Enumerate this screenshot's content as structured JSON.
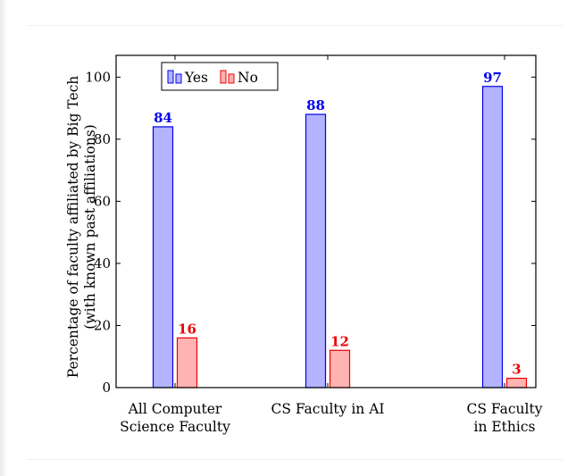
{
  "chart_data": {
    "type": "bar",
    "categories": [
      [
        "All Computer",
        "Science Faculty"
      ],
      [
        "CS Faculty in AI"
      ],
      [
        "CS Faculty",
        "in Ethics"
      ]
    ],
    "series": [
      {
        "name": "Yes",
        "values": [
          84,
          88,
          97
        ],
        "color": "#0000ee",
        "fill": "#b3b3ff"
      },
      {
        "name": "No",
        "values": [
          16,
          12,
          3
        ],
        "color": "#ee0000",
        "fill": "#ffb3b3"
      }
    ],
    "ylabel": [
      "Percentage of faculty affiliated by Big Tech",
      "(with known past affiliations)"
    ],
    "ylim": [
      0,
      107
    ],
    "yticks": [
      0,
      20,
      40,
      60,
      80,
      100
    ],
    "legend": "top-left",
    "grid": false
  }
}
